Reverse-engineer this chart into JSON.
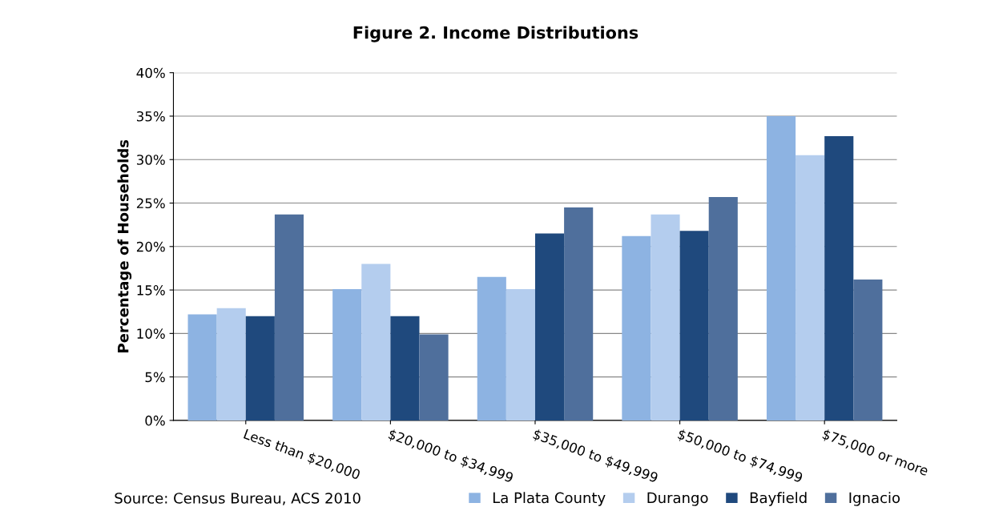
{
  "chart_data": {
    "type": "bar",
    "title": "Figure 2. Income Distributions",
    "ylabel": "Percentage of Households",
    "categories": [
      "Less than $20,000",
      "$20,000 to $34,999",
      "$35,000 to $49,999",
      "$50,000 to $74,999",
      "$75,000 or more"
    ],
    "series": [
      {
        "name": "La Plata County",
        "color": "#8db3e2",
        "values": [
          12.2,
          15.1,
          16.5,
          21.2,
          35.0
        ]
      },
      {
        "name": "Durango",
        "color": "#b4cdee",
        "values": [
          12.9,
          18.0,
          15.1,
          23.7,
          30.5
        ]
      },
      {
        "name": "Bayfield",
        "color": "#1f497d",
        "values": [
          12.0,
          12.0,
          21.5,
          21.8,
          32.7
        ]
      },
      {
        "name": "Ignacio",
        "color": "#4f6f9c",
        "values": [
          23.7,
          9.9,
          24.5,
          25.7,
          16.2
        ]
      }
    ],
    "ylim": [
      0,
      40
    ],
    "yticks": [
      {
        "value": 0,
        "label": "0%"
      },
      {
        "value": 5,
        "label": "5%"
      },
      {
        "value": 10,
        "label": "10%"
      },
      {
        "value": 15,
        "label": "15%"
      },
      {
        "value": 20,
        "label": "20%"
      },
      {
        "value": 25,
        "label": "25%"
      },
      {
        "value": 30,
        "label": "30%"
      },
      {
        "value": 35,
        "label": "35%"
      },
      {
        "value": 40,
        "label": "40%"
      }
    ],
    "grid": "y",
    "legend": "bottom right",
    "annotations": [
      "Source: Census Bureau, ACS 2010"
    ]
  }
}
